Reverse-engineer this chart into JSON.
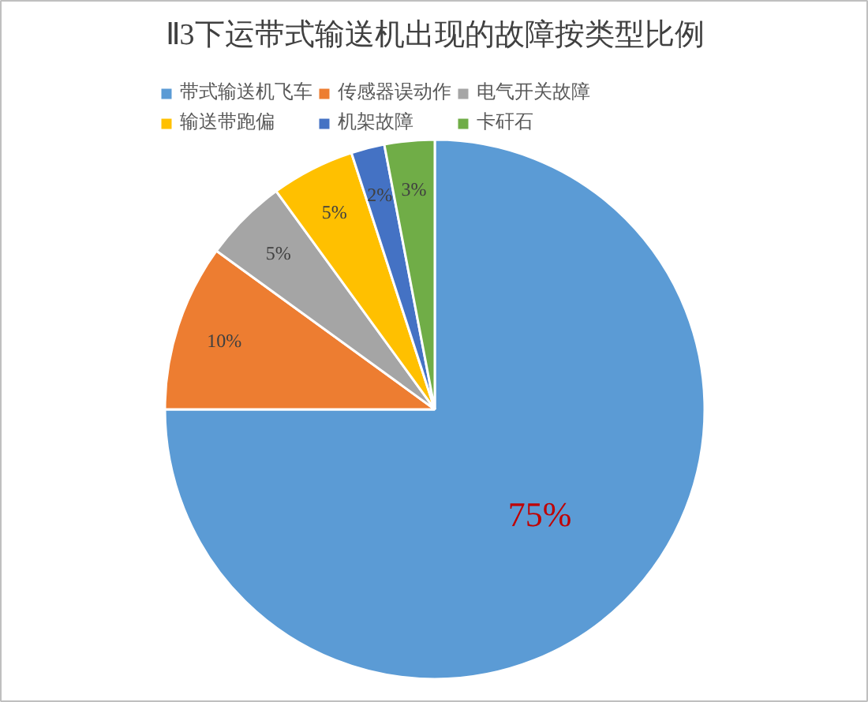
{
  "chart_data": {
    "type": "pie",
    "title": "Ⅱ3下运带式输送机出现的故障按类型比例",
    "categories": [
      "带式输送机飞车",
      "传感器误动作",
      "电气开关故障",
      "输送带跑偏",
      "机架故障",
      "卡矸石"
    ],
    "values": [
      75,
      10,
      5,
      5,
      2,
      3
    ],
    "colors": [
      "#5b9bd5",
      "#ed7d31",
      "#a5a5a5",
      "#ffc000",
      "#4472c4",
      "#70ad47"
    ],
    "value_labels": [
      "75%",
      "10%",
      "5%",
      "5%",
      "2%",
      "3%"
    ],
    "legend": "top"
  }
}
